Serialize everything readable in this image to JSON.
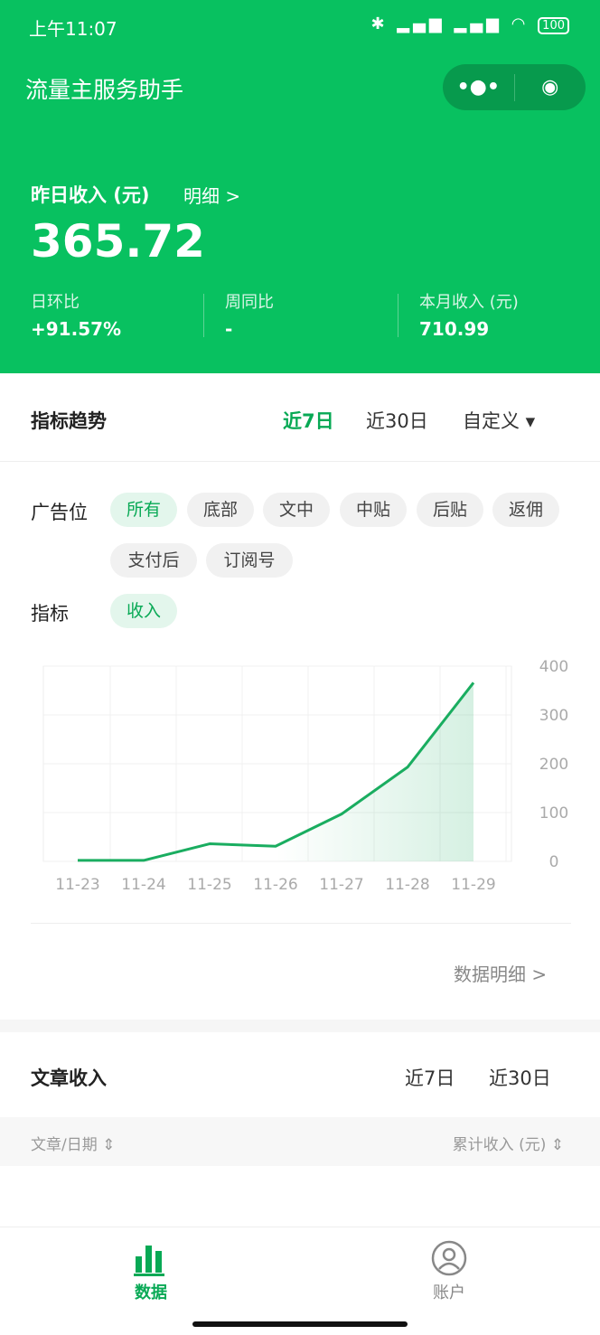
{
  "status_bar": {
    "time": "上午11:07",
    "more": "···",
    "battery": "100"
  },
  "header": {
    "app_title": "流量主服务助手",
    "menu_icon": "more-dots-icon",
    "close_icon": "target-circle-icon",
    "yesterday_label": "昨日收入 (元)",
    "detail_link": "明细 >",
    "yesterday_value": "365.72",
    "stats": [
      {
        "label": "日环比",
        "value": "+91.57%"
      },
      {
        "label": "周同比",
        "value": "-"
      },
      {
        "label": "本月收入 (元)",
        "value": "710.99"
      }
    ]
  },
  "trend": {
    "title": "指标趋势",
    "ranges": [
      "近7日",
      "近30日",
      "自定义 ▾"
    ],
    "active_range": "近7日"
  },
  "filters": {
    "slot_label": "广告位",
    "slots": [
      "所有",
      "底部",
      "文中",
      "中贴",
      "后贴",
      "返佣",
      "支付后",
      "订阅号"
    ],
    "active_slot": "所有",
    "metric_label": "指标",
    "metrics": [
      "收入"
    ]
  },
  "chart_data": {
    "type": "area",
    "categories": [
      "11-23",
      "11-24",
      "11-25",
      "11-26",
      "11-27",
      "11-28",
      "11-29"
    ],
    "values": [
      2,
      2,
      36,
      31,
      97,
      193,
      366
    ],
    "ylim": [
      0,
      400
    ],
    "yticks": [
      0,
      100,
      200,
      300,
      400
    ],
    "grid": true,
    "color": "#1aad60"
  },
  "data_detail_link": "数据明细 >",
  "articles": {
    "title": "文章收入",
    "ranges": [
      "近7日",
      "近30日"
    ],
    "col_article": "文章/日期 ⇕",
    "col_income": "累计收入 (元) ⇕"
  },
  "bottom_nav": [
    {
      "label": "数据",
      "icon": "bar-chart-icon",
      "active": true
    },
    {
      "label": "账户",
      "icon": "user-circle-icon",
      "active": false
    }
  ]
}
